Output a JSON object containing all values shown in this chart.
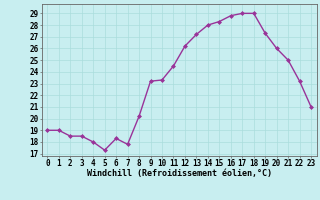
{
  "x": [
    0,
    1,
    2,
    3,
    4,
    5,
    6,
    7,
    8,
    9,
    10,
    11,
    12,
    13,
    14,
    15,
    16,
    17,
    18,
    19,
    20,
    21,
    22,
    23
  ],
  "y": [
    19,
    19,
    18.5,
    18.5,
    18,
    17.3,
    18.3,
    17.8,
    20.2,
    23.2,
    23.3,
    24.5,
    26.2,
    27.2,
    28.0,
    28.3,
    28.8,
    29.0,
    29.0,
    27.3,
    26.0,
    25.0,
    23.2,
    21.0
  ],
  "line_color": "#993399",
  "marker": "D",
  "marker_size": 2.0,
  "bg_color": "#c8eef0",
  "grid_color": "#aadddd",
  "xlabel": "Windchill (Refroidissement éolien,°C)",
  "ylabel_ticks": [
    17,
    18,
    19,
    20,
    21,
    22,
    23,
    24,
    25,
    26,
    27,
    28,
    29
  ],
  "ylim": [
    16.8,
    29.8
  ],
  "xlim": [
    -0.5,
    23.5
  ],
  "xlabel_fontsize": 6.0,
  "tick_fontsize": 5.5,
  "line_width": 1.0
}
